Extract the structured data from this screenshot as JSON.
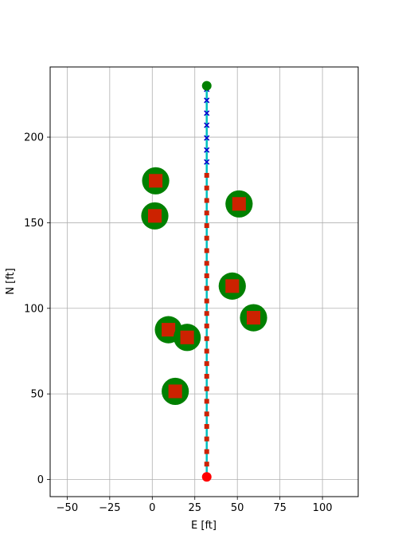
{
  "chart_data": {
    "type": "scatter",
    "title": "",
    "xlabel": "E [ft]",
    "ylabel": "N [ft]",
    "xlim": [
      -60,
      121
    ],
    "ylim": [
      -10,
      241
    ],
    "xticks": [
      -50,
      -25,
      0,
      25,
      50,
      75,
      100
    ],
    "yticks": [
      0,
      50,
      100,
      150,
      200
    ],
    "xtick_labels": [
      "−50",
      "−25",
      "0",
      "25",
      "50",
      "75",
      "100"
    ],
    "ytick_labels": [
      "0",
      "50",
      "100",
      "150",
      "200"
    ],
    "grid": true,
    "legend": "none",
    "obstacles": {
      "circle_radius_ft": 8,
      "circle_color": "#008000",
      "square_half_size_ft": 4,
      "square_color": "#cc2200",
      "centers": [
        {
          "x": 2,
          "y": 174.5
        },
        {
          "x": 1.5,
          "y": 154
        },
        {
          "x": 51,
          "y": 161
        },
        {
          "x": 47,
          "y": 113
        },
        {
          "x": 59.5,
          "y": 94.5
        },
        {
          "x": 9.5,
          "y": 87.5
        },
        {
          "x": 20.5,
          "y": 83
        },
        {
          "x": 13.5,
          "y": 51.5
        }
      ]
    },
    "path": {
      "x": 32,
      "y_start": 1.5,
      "y_end": 230,
      "color": "#00c0c0",
      "start_color": "#ff0000",
      "goal_color": "#008000"
    },
    "series": [
      {
        "marker": "square",
        "color": "#cc2200",
        "points": [
          {
            "x": 32,
            "y": 9
          },
          {
            "x": 32,
            "y": 16.3
          },
          {
            "x": 32,
            "y": 23.7
          },
          {
            "x": 32,
            "y": 31
          },
          {
            "x": 32,
            "y": 38.3
          },
          {
            "x": 32,
            "y": 45.7
          },
          {
            "x": 32,
            "y": 53
          },
          {
            "x": 32,
            "y": 60.3
          },
          {
            "x": 32,
            "y": 67.7
          },
          {
            "x": 32,
            "y": 75
          },
          {
            "x": 32,
            "y": 82.3
          },
          {
            "x": 32,
            "y": 89.7
          },
          {
            "x": 32,
            "y": 97
          },
          {
            "x": 32,
            "y": 104.3
          },
          {
            "x": 32,
            "y": 111.7
          },
          {
            "x": 32,
            "y": 119
          },
          {
            "x": 32,
            "y": 126.3
          },
          {
            "x": 32,
            "y": 133.7
          },
          {
            "x": 32,
            "y": 141
          },
          {
            "x": 32,
            "y": 148.3
          },
          {
            "x": 32,
            "y": 155.7
          },
          {
            "x": 32,
            "y": 163
          },
          {
            "x": 32,
            "y": 170.3
          },
          {
            "x": 32,
            "y": 177.7
          }
        ]
      },
      {
        "marker": "x",
        "color": "#0000cc",
        "points": [
          {
            "x": 32,
            "y": 185.5
          },
          {
            "x": 32,
            "y": 192.5
          },
          {
            "x": 32,
            "y": 199.5
          },
          {
            "x": 32,
            "y": 207
          },
          {
            "x": 32,
            "y": 214
          },
          {
            "x": 32,
            "y": 221.5
          },
          {
            "x": 32,
            "y": 228
          }
        ]
      }
    ]
  }
}
